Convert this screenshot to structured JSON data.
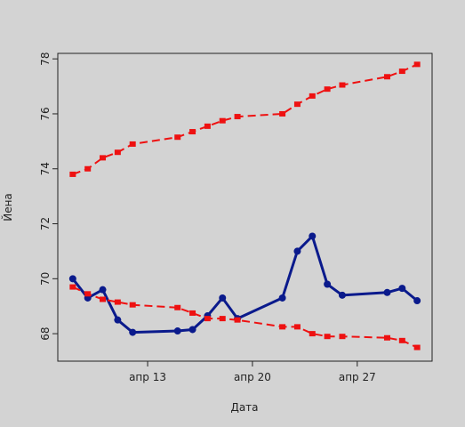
{
  "chart_data": {
    "type": "line",
    "xlabel": "Дата",
    "ylabel": "Йена",
    "x_dates": [
      "2013-04-08",
      "2013-04-09",
      "2013-04-10",
      "2013-04-11",
      "2013-04-12",
      "2013-04-15",
      "2013-04-16",
      "2013-04-17",
      "2013-04-18",
      "2013-04-19",
      "2013-04-22",
      "2013-04-23",
      "2013-04-24",
      "2013-04-25",
      "2013-04-26",
      "2013-04-29",
      "2013-04-30",
      "2013-05-01"
    ],
    "x_ticks": [
      {
        "date": "2013-04-13",
        "label": "апр 13"
      },
      {
        "date": "2013-04-20",
        "label": "апр 20"
      },
      {
        "date": "2013-04-27",
        "label": "апр 27"
      }
    ],
    "x_range": [
      "2013-04-07",
      "2013-05-02"
    ],
    "y_ticks": [
      68,
      70,
      72,
      74,
      76,
      78
    ],
    "ylim": [
      67,
      78.2
    ],
    "grid": false,
    "series": [
      {
        "color": "#0a1a8c",
        "style": "solid",
        "values": [
          70.0,
          69.3,
          69.6,
          68.5,
          68.05,
          68.1,
          68.15,
          68.65,
          69.3,
          68.55,
          69.3,
          71.0,
          71.55,
          69.8,
          69.4,
          69.5,
          69.65,
          69.2
        ]
      },
      {
        "color": "#ee1111",
        "style": "dashed",
        "values": [
          73.8,
          74.0,
          74.4,
          74.6,
          74.9,
          75.15,
          75.35,
          75.55,
          75.75,
          75.9,
          76.0,
          76.35,
          76.65,
          76.9,
          77.05,
          77.35,
          77.55,
          77.8
        ]
      },
      {
        "color": "#ee1111",
        "style": "dashed",
        "values": [
          69.7,
          69.45,
          69.25,
          69.15,
          69.05,
          68.95,
          68.75,
          68.55,
          68.55,
          68.5,
          68.25,
          68.25,
          68.0,
          67.9,
          67.9,
          67.85,
          67.75,
          67.5
        ]
      }
    ]
  }
}
